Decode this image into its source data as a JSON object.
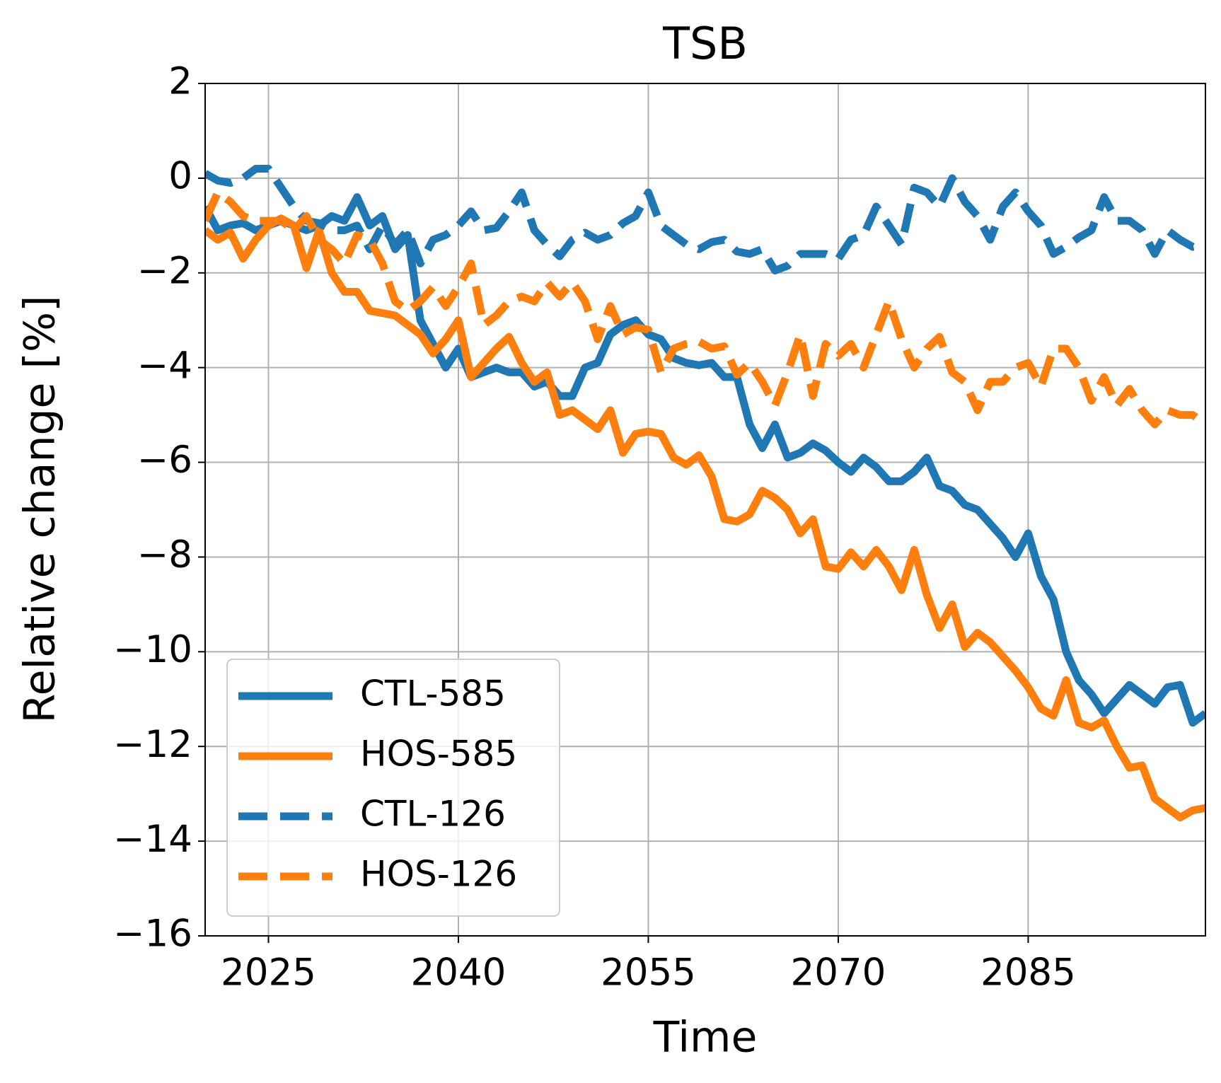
{
  "chart_data": {
    "type": "line",
    "title": "TSB",
    "xlabel": "Time",
    "ylabel": "Relative change [%]",
    "x": [
      2020,
      2021,
      2022,
      2023,
      2024,
      2025,
      2026,
      2027,
      2028,
      2029,
      2030,
      2031,
      2032,
      2033,
      2034,
      2035,
      2036,
      2037,
      2038,
      2039,
      2040,
      2041,
      2042,
      2043,
      2044,
      2045,
      2046,
      2047,
      2048,
      2049,
      2050,
      2051,
      2052,
      2053,
      2054,
      2055,
      2056,
      2057,
      2058,
      2059,
      2060,
      2061,
      2062,
      2063,
      2064,
      2065,
      2066,
      2067,
      2068,
      2069,
      2070,
      2071,
      2072,
      2073,
      2074,
      2075,
      2076,
      2077,
      2078,
      2079,
      2080,
      2081,
      2082,
      2083,
      2084,
      2085,
      2086,
      2087,
      2088,
      2089,
      2090,
      2091,
      2092,
      2093,
      2094,
      2095,
      2096,
      2097,
      2098,
      2099
    ],
    "series": [
      {
        "name": "CTL-585",
        "color": "#1f77b4",
        "linestyle": "solid",
        "values": [
          -0.6,
          -1.1,
          -1.0,
          -0.95,
          -1.1,
          -1.0,
          -0.9,
          -1.0,
          -1.1,
          -1.0,
          -0.8,
          -0.9,
          -0.4,
          -1.0,
          -0.8,
          -1.5,
          -1.2,
          -3.0,
          -3.5,
          -4.0,
          -3.6,
          -4.2,
          -4.1,
          -4.0,
          -4.1,
          -4.1,
          -4.4,
          -4.3,
          -4.6,
          -4.6,
          -4.0,
          -3.9,
          -3.3,
          -3.1,
          -3.0,
          -3.3,
          -3.4,
          -3.8,
          -3.9,
          -3.95,
          -3.9,
          -4.2,
          -4.2,
          -5.2,
          -5.7,
          -5.2,
          -5.9,
          -5.8,
          -5.6,
          -5.75,
          -6.0,
          -6.2,
          -5.9,
          -6.1,
          -6.4,
          -6.4,
          -6.2,
          -5.9,
          -6.5,
          -6.6,
          -6.9,
          -7.0,
          -7.3,
          -7.6,
          -8.0,
          -7.5,
          -8.4,
          -8.9,
          -10.0,
          -10.6,
          -10.9,
          -11.3,
          -11.0,
          -10.7,
          -10.9,
          -11.1,
          -10.75,
          -10.7,
          -11.5,
          -11.3
        ]
      },
      {
        "name": "HOS-585",
        "color": "#ff7f0e",
        "linestyle": "solid",
        "values": [
          -1.1,
          -1.3,
          -1.15,
          -1.7,
          -1.3,
          -1.0,
          -0.85,
          -1.0,
          -1.9,
          -1.1,
          -2.0,
          -2.4,
          -2.4,
          -2.8,
          -2.85,
          -2.9,
          -3.1,
          -3.3,
          -3.7,
          -3.4,
          -3.0,
          -4.2,
          -3.9,
          -3.6,
          -3.35,
          -3.9,
          -4.3,
          -4.1,
          -5.0,
          -4.9,
          -5.1,
          -5.3,
          -4.9,
          -5.8,
          -5.4,
          -5.35,
          -5.4,
          -5.9,
          -6.05,
          -5.85,
          -6.3,
          -7.2,
          -7.25,
          -7.1,
          -6.6,
          -6.75,
          -7.0,
          -7.5,
          -7.2,
          -8.2,
          -8.25,
          -7.9,
          -8.2,
          -7.85,
          -8.2,
          -8.7,
          -7.85,
          -8.8,
          -9.5,
          -9.0,
          -9.9,
          -9.6,
          -9.8,
          -10.1,
          -10.4,
          -10.75,
          -11.2,
          -11.35,
          -10.6,
          -11.5,
          -11.6,
          -11.45,
          -12.0,
          -12.45,
          -12.4,
          -13.1,
          -13.3,
          -13.5,
          -13.35,
          -13.3
        ]
      },
      {
        "name": "CTL-126",
        "color": "#1f77b4",
        "linestyle": "dashed",
        "values": [
          0.1,
          -0.05,
          -0.1,
          0.0,
          0.2,
          0.2,
          -0.2,
          -0.6,
          -0.9,
          -0.95,
          -1.1,
          -1.1,
          -1.0,
          -1.5,
          -1.0,
          -1.4,
          -1.1,
          -1.8,
          -1.3,
          -1.2,
          -1.0,
          -0.7,
          -1.1,
          -1.05,
          -0.7,
          -0.3,
          -1.1,
          -1.4,
          -1.65,
          -1.3,
          -1.15,
          -1.3,
          -1.2,
          -0.95,
          -0.8,
          -0.3,
          -1.0,
          -1.2,
          -1.4,
          -1.5,
          -1.35,
          -1.3,
          -1.55,
          -1.6,
          -1.5,
          -1.95,
          -1.85,
          -1.6,
          -1.6,
          -1.6,
          -1.7,
          -1.3,
          -1.2,
          -0.6,
          -1.0,
          -1.4,
          -0.2,
          -0.3,
          -0.6,
          0.0,
          -0.5,
          -0.8,
          -1.3,
          -0.6,
          -0.3,
          -0.7,
          -1.0,
          -1.6,
          -1.45,
          -1.25,
          -1.1,
          -0.4,
          -0.9,
          -0.9,
          -1.1,
          -1.6,
          -1.1,
          -1.3,
          -1.45,
          -1.4
        ]
      },
      {
        "name": "HOS-126",
        "color": "#ff7f0e",
        "linestyle": "dashed",
        "values": [
          -0.9,
          -0.3,
          -0.5,
          -0.8,
          -0.9,
          -0.9,
          -0.9,
          -1.1,
          -0.8,
          -1.3,
          -1.5,
          -1.8,
          -1.2,
          -1.3,
          -1.8,
          -2.6,
          -2.8,
          -2.6,
          -2.3,
          -2.7,
          -2.3,
          -1.8,
          -3.1,
          -2.9,
          -2.6,
          -2.5,
          -2.6,
          -2.2,
          -2.5,
          -2.2,
          -2.6,
          -3.4,
          -2.7,
          -3.3,
          -3.15,
          -3.2,
          -4.1,
          -3.6,
          -3.5,
          -3.45,
          -3.6,
          -3.55,
          -4.15,
          -3.9,
          -4.3,
          -4.8,
          -4.1,
          -3.3,
          -4.6,
          -3.5,
          -3.75,
          -3.5,
          -4.0,
          -3.3,
          -2.6,
          -3.4,
          -4.0,
          -3.6,
          -3.35,
          -4.1,
          -4.3,
          -4.9,
          -4.3,
          -4.3,
          -4.0,
          -3.9,
          -4.4,
          -3.6,
          -3.6,
          -4.0,
          -4.7,
          -4.2,
          -4.8,
          -4.45,
          -4.9,
          -5.2,
          -4.9,
          -5.0,
          -5.0,
          -5.2
        ]
      }
    ],
    "xlim": [
      2020,
      2099
    ],
    "xticks": [
      2025,
      2040,
      2055,
      2070,
      2085
    ],
    "ylim": [
      -16,
      2
    ],
    "yticks": [
      {
        "value": -16,
        "label": "−16"
      },
      {
        "value": -14,
        "label": "−14"
      },
      {
        "value": -12,
        "label": "−12"
      },
      {
        "value": -10,
        "label": "−10"
      },
      {
        "value": -8,
        "label": "−8"
      },
      {
        "value": -6,
        "label": "−6"
      },
      {
        "value": -4,
        "label": "−4"
      },
      {
        "value": -2,
        "label": "−2"
      },
      0,
      2
    ],
    "grid": true,
    "legend": "lower left"
  }
}
